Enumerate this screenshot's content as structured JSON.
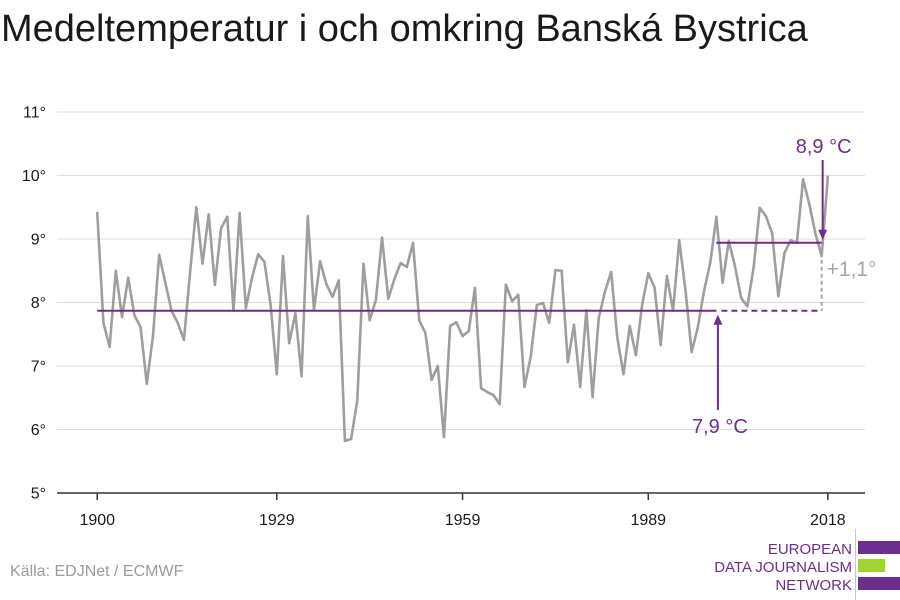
{
  "chart_data": {
    "type": "line",
    "title": "Medeltemperatur i och omkring Banská Bystrica",
    "x": [
      1900,
      1901,
      1902,
      1903,
      1904,
      1905,
      1906,
      1907,
      1908,
      1909,
      1910,
      1911,
      1912,
      1913,
      1914,
      1915,
      1916,
      1917,
      1918,
      1919,
      1920,
      1921,
      1922,
      1923,
      1924,
      1925,
      1926,
      1927,
      1928,
      1929,
      1930,
      1931,
      1932,
      1933,
      1934,
      1935,
      1936,
      1937,
      1938,
      1939,
      1940,
      1941,
      1942,
      1943,
      1944,
      1945,
      1946,
      1947,
      1948,
      1949,
      1950,
      1951,
      1952,
      1953,
      1954,
      1955,
      1956,
      1957,
      1958,
      1959,
      1960,
      1961,
      1962,
      1963,
      1964,
      1965,
      1966,
      1967,
      1968,
      1969,
      1970,
      1971,
      1972,
      1973,
      1974,
      1975,
      1976,
      1977,
      1978,
      1979,
      1980,
      1981,
      1982,
      1983,
      1984,
      1985,
      1986,
      1987,
      1988,
      1989,
      1990,
      1991,
      1992,
      1993,
      1994,
      1995,
      1996,
      1997,
      1998,
      1999,
      2000,
      2001,
      2002,
      2003,
      2004,
      2005,
      2006,
      2007,
      2008,
      2009,
      2010,
      2011,
      2012,
      2013,
      2014,
      2015,
      2016,
      2017,
      2018
    ],
    "series": [
      {
        "values": [
          9.41,
          7.68,
          7.3,
          8.5,
          7.77,
          8.39,
          7.8,
          7.61,
          6.72,
          7.47,
          8.75,
          8.31,
          7.87,
          7.68,
          7.41,
          8.48,
          9.5,
          8.61,
          9.39,
          8.28,
          9.17,
          9.35,
          7.87,
          9.41,
          7.91,
          8.39,
          8.76,
          8.64,
          7.96,
          6.87,
          8.73,
          7.36,
          7.83,
          6.84,
          9.36,
          7.88,
          8.65,
          8.29,
          8.09,
          8.35,
          5.82,
          5.85,
          6.46,
          8.61,
          7.72,
          8.04,
          9.02,
          8.06,
          8.37,
          8.62,
          8.56,
          8.94,
          7.72,
          7.52,
          6.78,
          7.0,
          5.88,
          7.63,
          7.69,
          7.47,
          7.55,
          8.23,
          6.65,
          6.59,
          6.54,
          6.4,
          8.28,
          8.02,
          8.12,
          6.67,
          7.14,
          7.96,
          7.99,
          7.68,
          8.51,
          8.5,
          7.06,
          7.65,
          6.67,
          7.88,
          6.51,
          7.76,
          8.17,
          8.48,
          7.44,
          6.87,
          7.63,
          7.17,
          7.96,
          8.46,
          8.24,
          7.33,
          8.42,
          7.87,
          8.98,
          8.2,
          7.22,
          7.61,
          8.18,
          8.62,
          9.35,
          8.31,
          8.97,
          8.57,
          8.07,
          7.94,
          8.54,
          9.49,
          9.36,
          9.09,
          8.1,
          8.78,
          8.98,
          8.94,
          9.94,
          9.55,
          9.08,
          8.73,
          9.98
        ]
      }
    ],
    "xlim": [
      1893.5,
      2024
    ],
    "ylim": [
      5,
      11
    ],
    "xticks": [
      1900,
      1929,
      1959,
      1989,
      2018
    ],
    "xtick_labels": [
      "1900",
      "1929",
      "1959",
      "1989",
      "2018"
    ],
    "yticks": [
      5,
      6,
      7,
      8,
      9,
      10,
      11
    ],
    "ytick_labels": [
      "5°",
      "6°",
      "7°",
      "8°",
      "9°",
      "10°",
      "11°"
    ],
    "grid": true,
    "annotations": [
      {
        "label": "7,9 °C",
        "value": 7.87,
        "x_from": 1900,
        "x_to": 2000,
        "dashed_to": 2017
      },
      {
        "label": "8,9 °C",
        "value": 8.94,
        "x_from": 2000,
        "x_to": 2017
      }
    ],
    "difference": {
      "label": "+1,1°",
      "x": 2017,
      "from": 7.87,
      "to": 8.94
    }
  },
  "source": "Källa: EDJNet / ECMWF",
  "logo": {
    "lines": [
      "EUROPEAN",
      "DATA JOURNALISM",
      "NETWORK"
    ]
  },
  "colors": {
    "text": "#1a1a1a",
    "series": "#9e9e9e",
    "accent": "#6c2d8e",
    "grid": "#dddddd",
    "axis": "#333333",
    "difference": "#a6a6a6",
    "source": "#9b9b9b",
    "logo_green": "#9fd52c",
    "logo_divider": "#c8c8c8"
  }
}
